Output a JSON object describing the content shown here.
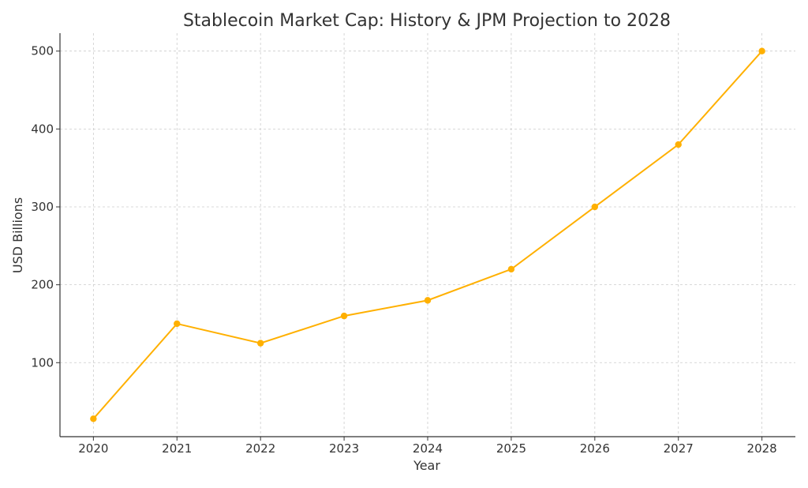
{
  "chart_data": {
    "type": "line",
    "title": "Stablecoin Market Cap: History & JPM Projection to 2028",
    "xlabel": "Year",
    "ylabel": "USD Billions",
    "x": [
      "2020",
      "2021",
      "2022",
      "2023",
      "2024",
      "2025",
      "2026",
      "2027",
      "2028"
    ],
    "series": [
      {
        "values": [
          28,
          150,
          125,
          160,
          180,
          220,
          300,
          380,
          500
        ],
        "color": "#FFB000"
      }
    ],
    "xlim": [
      2019.6,
      2028.4
    ],
    "ylim": [
      5,
      523
    ],
    "yticks": [
      100,
      200,
      300,
      400,
      500
    ],
    "grid": true,
    "markers": true,
    "legend": false
  }
}
